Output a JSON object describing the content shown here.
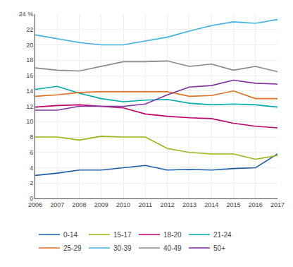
{
  "chart_data": {
    "type": "line",
    "x": [
      2006,
      2007,
      2008,
      2009,
      2010,
      2011,
      2012,
      2013,
      2014,
      2015,
      2016,
      2017
    ],
    "series": [
      {
        "name": "0-14",
        "color": "#1a5ea8",
        "values": [
          3.0,
          3.3,
          3.7,
          3.7,
          4.0,
          4.3,
          3.7,
          3.8,
          3.7,
          3.9,
          4.0,
          5.8
        ]
      },
      {
        "name": "15-17",
        "color": "#9ab519",
        "values": [
          8.0,
          8.0,
          7.6,
          8.1,
          8.0,
          8.0,
          6.5,
          6.0,
          5.8,
          5.8,
          5.1,
          5.6
        ]
      },
      {
        "name": "18-20",
        "color": "#c0006a",
        "values": [
          11.9,
          12.1,
          12.2,
          12.0,
          11.8,
          11.0,
          10.7,
          10.5,
          10.4,
          9.8,
          9.4,
          9.2
        ]
      },
      {
        "name": "21-24",
        "color": "#00aaaa",
        "values": [
          14.2,
          14.6,
          13.7,
          13.0,
          12.6,
          12.8,
          12.9,
          12.4,
          12.2,
          12.3,
          12.2,
          11.9
        ]
      },
      {
        "name": "25-29",
        "color": "#e07020",
        "values": [
          13.3,
          13.5,
          13.8,
          13.9,
          13.9,
          13.9,
          13.9,
          13.3,
          13.4,
          14.0,
          13.0,
          13.0
        ]
      },
      {
        "name": "30-39",
        "color": "#40b0e0",
        "values": [
          21.3,
          20.8,
          20.3,
          20.0,
          20.0,
          20.5,
          21.0,
          21.8,
          22.5,
          23.0,
          22.8,
          23.3
        ]
      },
      {
        "name": "40-49",
        "color": "#888888",
        "values": [
          17.0,
          16.7,
          16.6,
          17.2,
          17.8,
          17.8,
          17.9,
          17.2,
          17.5,
          16.7,
          17.2,
          16.5
        ]
      },
      {
        "name": "50+",
        "color": "#8030a0",
        "values": [
          11.5,
          11.5,
          12.0,
          12.0,
          12.0,
          12.3,
          13.5,
          14.5,
          14.7,
          15.4,
          15.0,
          14.9
        ]
      }
    ],
    "xlim": [
      2006,
      2017
    ],
    "xticks": [
      2006,
      2007,
      2008,
      2009,
      2010,
      2011,
      2012,
      2013,
      2014,
      2015,
      2016,
      2017
    ],
    "ylim": [
      0,
      24
    ],
    "yticks": [
      0,
      2,
      4,
      6,
      8,
      10,
      12,
      14,
      16,
      18,
      20,
      22,
      {
        "value": 24,
        "label": "24 %"
      }
    ],
    "grid": true,
    "legend": "bottom"
  }
}
